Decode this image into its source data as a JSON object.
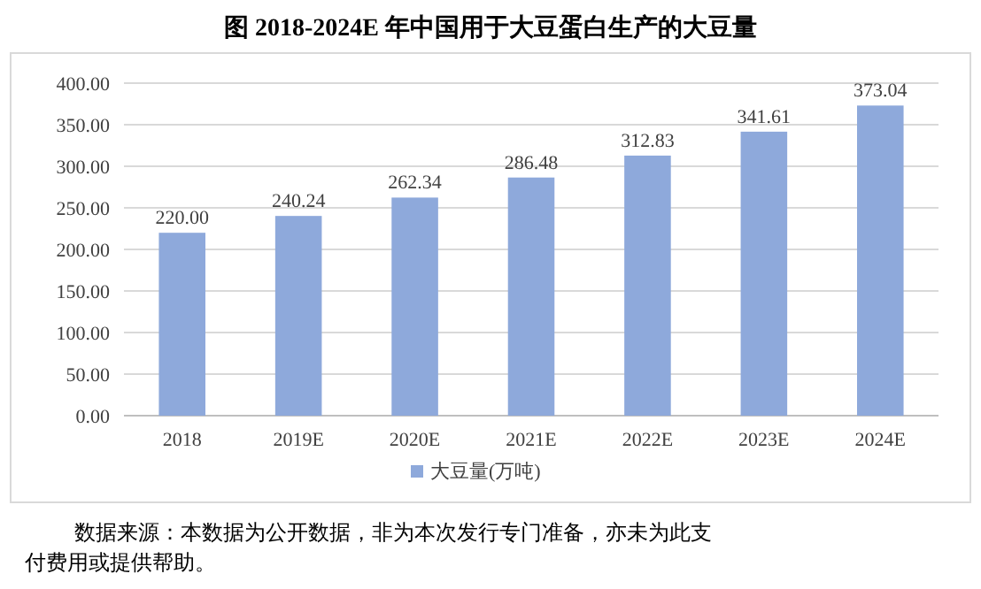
{
  "chart_data": {
    "type": "bar",
    "title": "图  2018-2024E 年中国用于大豆蛋白生产的大豆量",
    "categories": [
      "2018",
      "2019E",
      "2020E",
      "2021E",
      "2022E",
      "2023E",
      "2024E"
    ],
    "series": [
      {
        "name": "大豆量(万吨)",
        "color": "#8ea9db",
        "values": [
          220.0,
          240.24,
          262.34,
          286.48,
          312.83,
          341.61,
          373.04
        ],
        "value_labels": [
          "220.00",
          "240.24",
          "262.34",
          "286.48",
          "312.83",
          "341.61",
          "373.04"
        ]
      }
    ],
    "ylim": [
      0,
      400
    ],
    "yticks": [
      {
        "value": 0,
        "label": "0.00"
      },
      {
        "value": 50,
        "label": "50.00"
      },
      {
        "value": 100,
        "label": "100.00"
      },
      {
        "value": 150,
        "label": "150.00"
      },
      {
        "value": 200,
        "label": "200.00"
      },
      {
        "value": 250,
        "label": "250.00"
      },
      {
        "value": 300,
        "label": "300.00"
      },
      {
        "value": 350,
        "label": "350.00"
      },
      {
        "value": 400,
        "label": "400.00"
      }
    ],
    "grid": "y",
    "legend": "bottom",
    "annotations": [
      "数据来源：本数据为公开数据，非为本次发行专门准备，亦未为此支付费用或提供帮助。"
    ]
  }
}
